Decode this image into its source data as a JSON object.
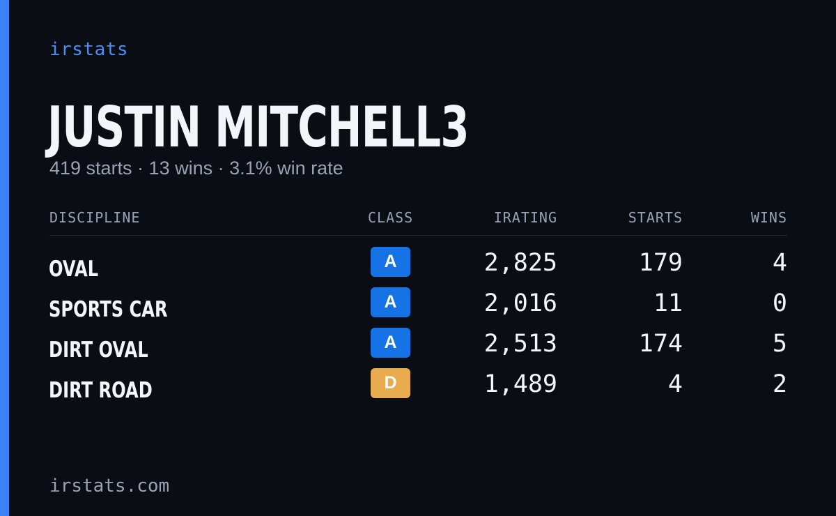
{
  "brand": "irstats",
  "player": {
    "name": "JUSTIN MITCHELL3",
    "summary": "419 starts · 13 wins · 3.1% win rate"
  },
  "table": {
    "headers": {
      "discipline": "DISCIPLINE",
      "class": "CLASS",
      "irating": "IRATING",
      "starts": "STARTS",
      "wins": "WINS"
    },
    "rows": [
      {
        "discipline": "OVAL",
        "class": "A",
        "class_color": "#1673e6",
        "irating": "2,825",
        "starts": "179",
        "wins": "4"
      },
      {
        "discipline": "SPORTS CAR",
        "class": "A",
        "class_color": "#1673e6",
        "irating": "2,016",
        "starts": "11",
        "wins": "0"
      },
      {
        "discipline": "DIRT OVAL",
        "class": "A",
        "class_color": "#1673e6",
        "irating": "2,513",
        "starts": "174",
        "wins": "5"
      },
      {
        "discipline": "DIRT ROAD",
        "class": "D",
        "class_color": "#e8ac4e",
        "irating": "1,489",
        "starts": "4",
        "wins": "2"
      }
    ]
  },
  "footer": "irstats.com",
  "colors": {
    "background": "#0a0d14",
    "accent": "#3b82f6",
    "text": "#f3f5f9",
    "muted": "#9aa3b5"
  }
}
